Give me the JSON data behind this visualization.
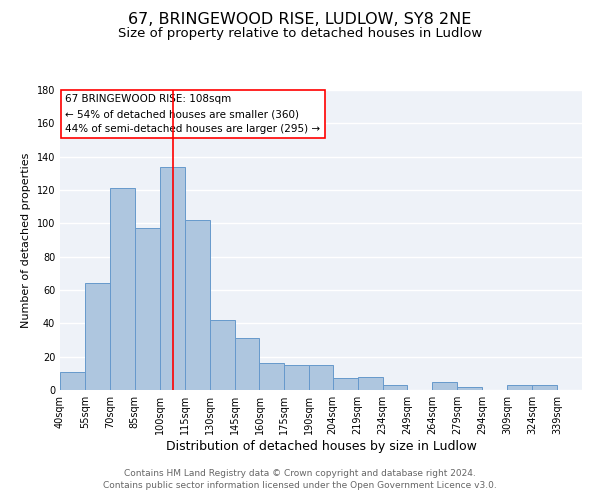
{
  "title": "67, BRINGEWOOD RISE, LUDLOW, SY8 2NE",
  "subtitle": "Size of property relative to detached houses in Ludlow",
  "xlabel": "Distribution of detached houses by size in Ludlow",
  "ylabel": "Number of detached properties",
  "bar_left_edges": [
    40,
    55,
    70,
    85,
    100,
    115,
    130,
    145,
    160,
    175,
    190,
    204,
    219,
    234,
    249,
    264,
    279,
    294,
    309,
    324
  ],
  "bar_widths": [
    15,
    15,
    15,
    15,
    15,
    15,
    15,
    15,
    15,
    15,
    14,
    15,
    15,
    15,
    15,
    15,
    15,
    15,
    15,
    15
  ],
  "bar_heights": [
    11,
    64,
    121,
    97,
    134,
    102,
    42,
    31,
    16,
    15,
    15,
    7,
    8,
    3,
    0,
    5,
    2,
    0,
    3,
    3
  ],
  "bar_color": "#aec6df",
  "bar_edge_color": "#6699cc",
  "tick_labels": [
    "40sqm",
    "55sqm",
    "70sqm",
    "85sqm",
    "100sqm",
    "115sqm",
    "130sqm",
    "145sqm",
    "160sqm",
    "175sqm",
    "190sqm",
    "204sqm",
    "219sqm",
    "234sqm",
    "249sqm",
    "264sqm",
    "279sqm",
    "294sqm",
    "309sqm",
    "324sqm",
    "339sqm"
  ],
  "ylim": [
    0,
    180
  ],
  "yticks": [
    0,
    20,
    40,
    60,
    80,
    100,
    120,
    140,
    160,
    180
  ],
  "red_line_x": 108,
  "annotation_title": "67 BRINGEWOOD RISE: 108sqm",
  "annotation_line1": "← 54% of detached houses are smaller (360)",
  "annotation_line2": "44% of semi-detached houses are larger (295) →",
  "footer_line1": "Contains HM Land Registry data © Crown copyright and database right 2024.",
  "footer_line2": "Contains public sector information licensed under the Open Government Licence v3.0.",
  "background_color": "#eef2f8",
  "grid_color": "#ffffff",
  "title_fontsize": 11.5,
  "subtitle_fontsize": 9.5,
  "xlabel_fontsize": 9,
  "ylabel_fontsize": 8,
  "tick_fontsize": 7,
  "annot_fontsize": 7.5,
  "footer_fontsize": 6.5
}
